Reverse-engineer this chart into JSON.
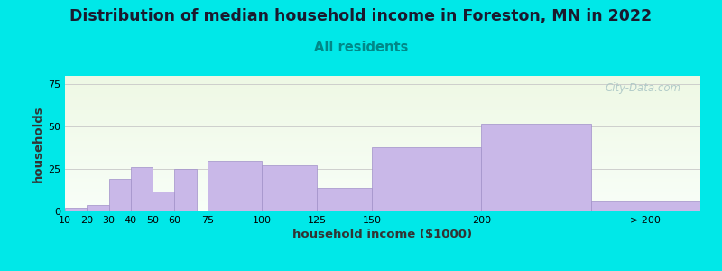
{
  "title": "Distribution of median household income in Foreston, MN in 2022",
  "subtitle": "All residents",
  "xlabel": "household income ($1000)",
  "ylabel": "households",
  "bar_labels": [
    "10",
    "20",
    "30",
    "40",
    "50",
    "60",
    "75",
    "100",
    "125",
    "150",
    "200",
    "> 200"
  ],
  "bar_heights": [
    2,
    4,
    19,
    26,
    12,
    25,
    30,
    27,
    14,
    38,
    52,
    6
  ],
  "bar_color": "#c9b8e8",
  "bar_edge_color": "#a090c8",
  "ylim": [
    0,
    80
  ],
  "yticks": [
    0,
    25,
    50,
    75
  ],
  "background_color": "#00e8e8",
  "plot_bg_top": "#eef8e4",
  "plot_bg_bottom": "#f8fef8",
  "title_fontsize": 12.5,
  "subtitle_fontsize": 10.5,
  "subtitle_color": "#008888",
  "axis_label_fontsize": 9.5,
  "tick_fontsize": 8,
  "watermark_text": "City-Data.com",
  "watermark_color": "#a8c4c4"
}
